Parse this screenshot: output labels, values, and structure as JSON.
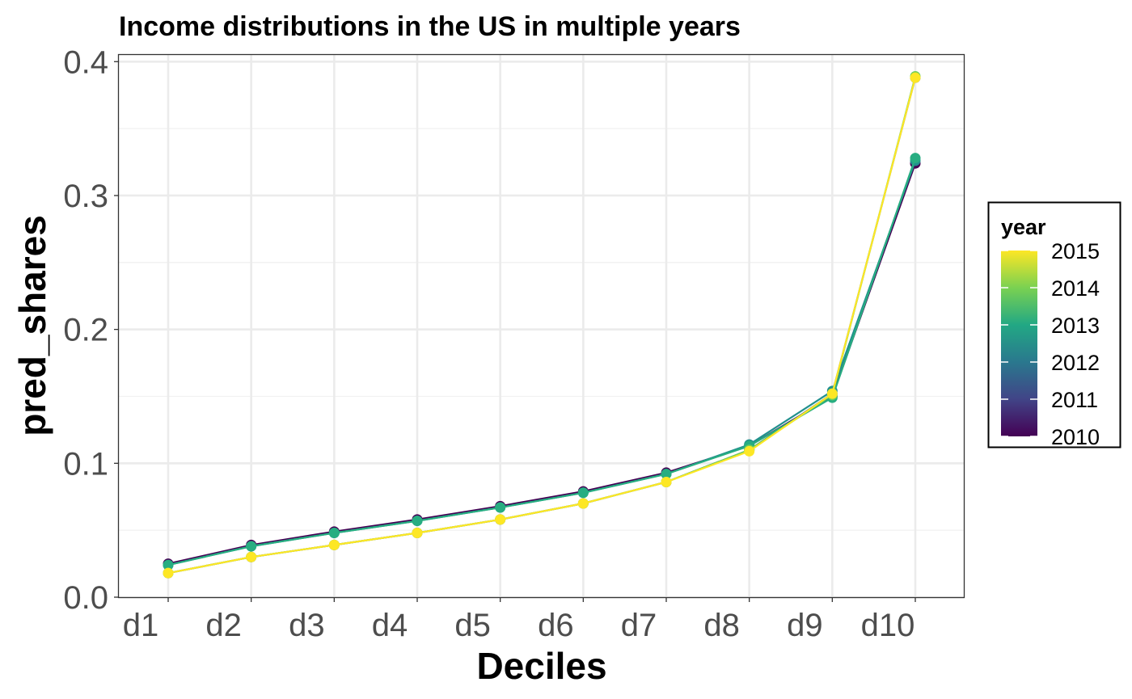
{
  "chart_data": {
    "type": "line",
    "title": "Income distributions in the US in multiple years",
    "xlabel": "Deciles",
    "ylabel": "pred_shares",
    "categories": [
      "d1",
      "d2",
      "d3",
      "d4",
      "d5",
      "d6",
      "d7",
      "d8",
      "d9",
      "d10"
    ],
    "ylim": [
      0,
      0.405
    ],
    "yticks": [
      "0.0",
      "0.1",
      "0.2",
      "0.3",
      "0.4"
    ],
    "grid": true,
    "legend": {
      "title": "year",
      "position": "right",
      "type": "colorbar",
      "labels": [
        "2015",
        "2014",
        "2013",
        "2012",
        "2011",
        "2010"
      ]
    },
    "series": [
      {
        "name": "2010",
        "color": "#440154",
        "values": [
          0.025,
          0.039,
          0.049,
          0.058,
          0.068,
          0.079,
          0.093,
          0.113,
          0.15,
          0.324
        ]
      },
      {
        "name": "2011",
        "color": "#3b528b",
        "values": [
          0.018,
          0.03,
          0.039,
          0.048,
          0.058,
          0.07,
          0.086,
          0.11,
          0.152,
          0.388
        ]
      },
      {
        "name": "2012",
        "color": "#21908d",
        "values": [
          0.024,
          0.038,
          0.048,
          0.057,
          0.067,
          0.078,
          0.092,
          0.114,
          0.154,
          0.326
        ]
      },
      {
        "name": "2013",
        "color": "#27ad81",
        "values": [
          0.024,
          0.038,
          0.048,
          0.057,
          0.067,
          0.078,
          0.092,
          0.113,
          0.149,
          0.328
        ]
      },
      {
        "name": "2014",
        "color": "#6ece58",
        "values": [
          0.018,
          0.03,
          0.039,
          0.048,
          0.058,
          0.07,
          0.086,
          0.11,
          0.151,
          0.389
        ]
      },
      {
        "name": "2015",
        "color": "#fde725",
        "values": [
          0.018,
          0.03,
          0.039,
          0.048,
          0.058,
          0.07,
          0.086,
          0.109,
          0.152,
          0.388
        ]
      }
    ]
  }
}
